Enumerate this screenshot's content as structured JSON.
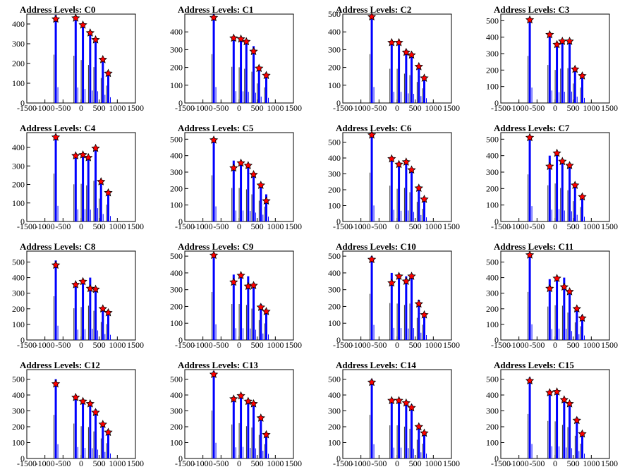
{
  "colors": {
    "histogram": "#0000ff",
    "marker": "#ff0000",
    "marker_outline": "#000000",
    "frame": "#000000"
  },
  "chart_data": [
    {
      "type": "bar",
      "title": "Address Levels: C0",
      "xlim": [
        -1500,
        1500
      ],
      "ylim": [
        0,
        450
      ],
      "yticks": [
        0,
        100,
        200,
        300,
        400
      ],
      "xticks": [
        -1500,
        -1000,
        -500,
        0,
        500,
        1000,
        1500
      ],
      "x": [
        -700,
        -150,
        50,
        250,
        400,
        600,
        750
      ],
      "values": [
        445,
        435,
        395,
        350,
        330,
        230,
        160
      ],
      "peaks": [
        425,
        430,
        395,
        355,
        320,
        220,
        150
      ]
    },
    {
      "type": "bar",
      "title": "Address Levels: C1",
      "xlim": [
        -1500,
        1500
      ],
      "ylim": [
        0,
        500
      ],
      "yticks": [
        0,
        100,
        200,
        300,
        400
      ],
      "xticks": [
        -1500,
        -1000,
        -500,
        0,
        500,
        1000,
        1500
      ],
      "x": [
        -700,
        -150,
        50,
        200,
        400,
        550,
        750
      ],
      "values": [
        500,
        370,
        365,
        350,
        320,
        200,
        160
      ],
      "peaks": [
        480,
        365,
        360,
        345,
        290,
        195,
        155
      ]
    },
    {
      "type": "bar",
      "title": "Address Levels: C2",
      "xlim": [
        -1500,
        1500
      ],
      "ylim": [
        0,
        500
      ],
      "yticks": [
        0,
        100,
        200,
        300,
        400,
        500
      ],
      "xticks": [
        -1500,
        -1000,
        -500,
        0,
        500,
        1000,
        1500
      ],
      "x": [
        -700,
        -150,
        50,
        250,
        400,
        600,
        750
      ],
      "values": [
        500,
        350,
        350,
        300,
        285,
        215,
        150
      ],
      "peaks": [
        485,
        340,
        340,
        285,
        270,
        205,
        140
      ]
    },
    {
      "type": "bar",
      "title": "Address Levels: C3",
      "xlim": [
        -1500,
        1500
      ],
      "ylim": [
        0,
        540
      ],
      "yticks": [
        0,
        100,
        200,
        300,
        400,
        500
      ],
      "xticks": [
        -1500,
        -1000,
        -500,
        0,
        500,
        1000,
        1500
      ],
      "x": [
        -700,
        -150,
        50,
        200,
        400,
        550,
        750
      ],
      "values": [
        520,
        420,
        365,
        380,
        385,
        215,
        170
      ],
      "peaks": [
        505,
        415,
        355,
        375,
        375,
        205,
        165
      ]
    },
    {
      "type": "bar",
      "title": "Address Levels: C4",
      "xlim": [
        -1500,
        1500
      ],
      "ylim": [
        0,
        480
      ],
      "yticks": [
        0,
        100,
        200,
        300,
        400
      ],
      "xticks": [
        -1500,
        -1000,
        -500,
        0,
        500,
        1000,
        1500
      ],
      "x": [
        -700,
        -150,
        50,
        200,
        400,
        550,
        750
      ],
      "values": [
        470,
        365,
        370,
        355,
        400,
        225,
        165
      ],
      "peaks": [
        455,
        355,
        360,
        345,
        395,
        215,
        155
      ]
    },
    {
      "type": "bar",
      "title": "Address Levels: C5",
      "xlim": [
        -1500,
        1500
      ],
      "ylim": [
        0,
        540
      ],
      "yticks": [
        0,
        100,
        200,
        300,
        400,
        500
      ],
      "xticks": [
        -1500,
        -1000,
        -500,
        0,
        500,
        1000,
        1500
      ],
      "x": [
        -700,
        -150,
        50,
        250,
        400,
        600,
        750
      ],
      "values": [
        510,
        370,
        370,
        355,
        300,
        230,
        165
      ],
      "peaks": [
        495,
        325,
        355,
        340,
        285,
        220,
        125
      ]
    },
    {
      "type": "bar",
      "title": "Address Levels: C6",
      "xlim": [
        -1500,
        1500
      ],
      "ylim": [
        0,
        560
      ],
      "yticks": [
        0,
        100,
        200,
        300,
        400,
        500
      ],
      "xticks": [
        -1500,
        -1000,
        -500,
        0,
        500,
        1000,
        1500
      ],
      "x": [
        -700,
        -150,
        50,
        250,
        400,
        600,
        750
      ],
      "values": [
        560,
        410,
        375,
        385,
        335,
        225,
        145
      ],
      "peaks": [
        545,
        395,
        360,
        375,
        325,
        210,
        140
      ]
    },
    {
      "type": "bar",
      "title": "Address Levels: C7",
      "xlim": [
        -1500,
        1500
      ],
      "ylim": [
        0,
        540
      ],
      "yticks": [
        0,
        100,
        200,
        300,
        400,
        500
      ],
      "xticks": [
        -1500,
        -1000,
        -500,
        0,
        500,
        1000,
        1500
      ],
      "x": [
        -700,
        -150,
        50,
        200,
        400,
        550,
        750
      ],
      "values": [
        520,
        400,
        420,
        370,
        345,
        225,
        160
      ],
      "peaks": [
        510,
        335,
        415,
        365,
        340,
        220,
        150
      ]
    },
    {
      "type": "bar",
      "title": "Address Levels: C8",
      "xlim": [
        -1500,
        1500
      ],
      "ylim": [
        0,
        570
      ],
      "yticks": [
        0,
        100,
        200,
        300,
        400,
        500
      ],
      "xticks": [
        -1500,
        -1000,
        -500,
        0,
        500,
        1000,
        1500
      ],
      "x": [
        -700,
        -150,
        50,
        250,
        400,
        600,
        750
      ],
      "values": [
        510,
        370,
        385,
        400,
        340,
        210,
        185
      ],
      "peaks": [
        480,
        355,
        375,
        330,
        325,
        200,
        175
      ]
    },
    {
      "type": "bar",
      "title": "Address Levels: C9",
      "xlim": [
        -1500,
        1500
      ],
      "ylim": [
        0,
        530
      ],
      "yticks": [
        0,
        100,
        200,
        300,
        400,
        500
      ],
      "xticks": [
        -1500,
        -1000,
        -500,
        0,
        500,
        1000,
        1500
      ],
      "x": [
        -700,
        -150,
        50,
        250,
        400,
        600,
        750
      ],
      "values": [
        520,
        390,
        390,
        380,
        340,
        215,
        180
      ],
      "peaks": [
        505,
        345,
        385,
        320,
        325,
        195,
        170
      ]
    },
    {
      "type": "bar",
      "title": "Address Levels: C10",
      "xlim": [
        -1500,
        1500
      ],
      "ylim": [
        0,
        530
      ],
      "yticks": [
        0,
        100,
        200,
        300,
        400,
        500
      ],
      "xticks": [
        -1500,
        -1000,
        -500,
        0,
        500,
        1000,
        1500
      ],
      "x": [
        -700,
        -150,
        50,
        250,
        400,
        600,
        750
      ],
      "values": [
        500,
        400,
        395,
        380,
        395,
        240,
        165
      ],
      "peaks": [
        480,
        340,
        380,
        350,
        380,
        215,
        150
      ]
    },
    {
      "type": "bar",
      "title": "Address Levels: C11",
      "xlim": [
        -1500,
        1500
      ],
      "ylim": [
        0,
        570
      ],
      "yticks": [
        0,
        100,
        200,
        300,
        400,
        500
      ],
      "xticks": [
        -1500,
        -1000,
        -500,
        0,
        500,
        1000,
        1500
      ],
      "x": [
        -700,
        -150,
        50,
        250,
        400,
        600,
        750
      ],
      "values": [
        560,
        390,
        405,
        400,
        320,
        205,
        160
      ],
      "peaks": [
        545,
        330,
        395,
        340,
        310,
        200,
        140
      ]
    },
    {
      "type": "bar",
      "title": "Address Levels: C12",
      "xlim": [
        -1500,
        1500
      ],
      "ylim": [
        0,
        560
      ],
      "yticks": [
        0,
        100,
        200,
        300,
        400,
        500
      ],
      "xticks": [
        -1500,
        -1000,
        -500,
        0,
        500,
        1000,
        1500
      ],
      "x": [
        -700,
        -150,
        50,
        250,
        400,
        600,
        750
      ],
      "values": [
        500,
        400,
        370,
        360,
        310,
        230,
        175
      ],
      "peaks": [
        470,
        385,
        360,
        345,
        290,
        215,
        165
      ]
    },
    {
      "type": "bar",
      "title": "Address Levels: C13",
      "xlim": [
        -1500,
        1500
      ],
      "ylim": [
        0,
        560
      ],
      "yticks": [
        0,
        100,
        200,
        300,
        400,
        500
      ],
      "xticks": [
        -1500,
        -1000,
        -500,
        0,
        500,
        1000,
        1500
      ],
      "x": [
        -700,
        -150,
        50,
        250,
        400,
        600,
        750
      ],
      "values": [
        550,
        390,
        405,
        370,
        355,
        270,
        165
      ],
      "peaks": [
        530,
        375,
        395,
        360,
        345,
        255,
        150
      ]
    },
    {
      "type": "bar",
      "title": "Address Levels: C14",
      "xlim": [
        -1500,
        1500
      ],
      "ylim": [
        0,
        560
      ],
      "yticks": [
        0,
        100,
        200,
        300,
        400,
        500
      ],
      "xticks": [
        -1500,
        -1000,
        -500,
        0,
        500,
        1000,
        1500
      ],
      "x": [
        -700,
        -150,
        50,
        250,
        400,
        600,
        750
      ],
      "values": [
        500,
        380,
        380,
        365,
        340,
        215,
        170
      ],
      "peaks": [
        480,
        365,
        365,
        350,
        320,
        200,
        160
      ]
    },
    {
      "type": "bar",
      "title": "Address Levels: C15",
      "xlim": [
        -1500,
        1500
      ],
      "ylim": [
        0,
        560
      ],
      "yticks": [
        0,
        100,
        200,
        300,
        400,
        500
      ],
      "xticks": [
        -1500,
        -1000,
        -500,
        0,
        500,
        1000,
        1500
      ],
      "x": [
        -700,
        -150,
        50,
        250,
        400,
        600,
        750
      ],
      "values": [
        510,
        430,
        425,
        385,
        360,
        260,
        170
      ],
      "peaks": [
        490,
        415,
        420,
        370,
        345,
        240,
        155
      ]
    }
  ]
}
